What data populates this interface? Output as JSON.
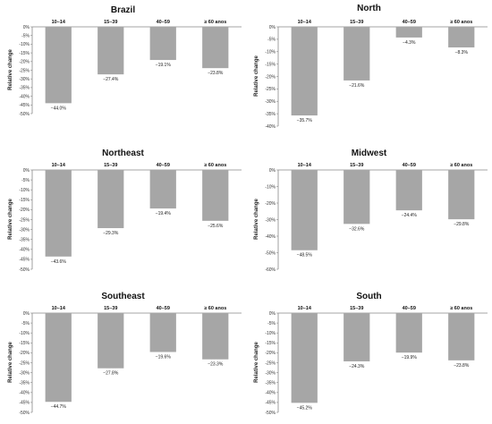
{
  "bar_color": "#a6a6a6",
  "axis_color": "#888888",
  "chart_data": [
    {
      "type": "bar",
      "title": "Brazil",
      "ylabel": "Relative change",
      "categories": [
        "10–14",
        "15–39",
        "40–59",
        "≥ 60 anos"
      ],
      "values": [
        -44.0,
        -27.4,
        -19.1,
        -23.8
      ],
      "data_labels": [
        "−44.0%",
        "−27.4%",
        "−19.1%",
        "−23.8%"
      ],
      "ylim": [
        -50,
        0
      ],
      "yticks": [
        0,
        -5,
        -10,
        -15,
        -20,
        -25,
        -30,
        -35,
        -40,
        -45,
        -50
      ],
      "ytick_labels": [
        "0%",
        "-5%",
        "-10%",
        "-15%",
        "-20%",
        "-25%",
        "-30%",
        "-35%",
        "-40%",
        "-45%",
        "-50%"
      ],
      "grid": false
    },
    {
      "type": "bar",
      "title": "North",
      "ylabel": "Relative change",
      "categories": [
        "10–14",
        "15–39",
        "40–59",
        "≥ 60 anos"
      ],
      "values": [
        -35.7,
        -21.6,
        -4.3,
        -8.3
      ],
      "data_labels": [
        "−35.7%",
        "−21.6%",
        "−4.3%",
        "−8.3%"
      ],
      "ylim": [
        -40,
        0
      ],
      "yticks": [
        0,
        -5,
        -10,
        -15,
        -20,
        -25,
        -30,
        -35,
        -40
      ],
      "ytick_labels": [
        "0%",
        "-5%",
        "-10%",
        "-15%",
        "-20%",
        "-25%",
        "-30%",
        "-35%",
        "-40%"
      ],
      "grid": false
    },
    {
      "type": "bar",
      "title": "Northeast",
      "ylabel": "Relative change",
      "categories": [
        "10–14",
        "15–39",
        "40–59",
        "≥ 60 anos"
      ],
      "values": [
        -43.6,
        -29.3,
        -19.4,
        -25.6
      ],
      "data_labels": [
        "−43.6%",
        "−29.3%",
        "−19.4%",
        "−25.6%"
      ],
      "ylim": [
        -50,
        0
      ],
      "yticks": [
        0,
        -5,
        -10,
        -15,
        -20,
        -25,
        -30,
        -35,
        -40,
        -45,
        -50
      ],
      "ytick_labels": [
        "0%",
        "-5%",
        "-10%",
        "-15%",
        "-20%",
        "-25%",
        "-30%",
        "-35%",
        "-40%",
        "-45%",
        "-50%"
      ],
      "grid": false
    },
    {
      "type": "bar",
      "title": "Midwest",
      "ylabel": "Relative change",
      "categories": [
        "10–14",
        "15–39",
        "40–59",
        "≥ 60 anos"
      ],
      "values": [
        -48.5,
        -32.6,
        -24.4,
        -29.8
      ],
      "data_labels": [
        "−48.5%",
        "−32.6%",
        "−24.4%",
        "−29.8%"
      ],
      "ylim": [
        -60,
        0
      ],
      "yticks": [
        0,
        -10,
        -20,
        -30,
        -40,
        -50,
        -60
      ],
      "ytick_labels": [
        "0%",
        "-10%",
        "-20%",
        "-30%",
        "-40%",
        "-50%",
        "-60%"
      ],
      "grid": false
    },
    {
      "type": "bar",
      "title": "Southeast",
      "ylabel": "Relative change",
      "categories": [
        "10–14",
        "15–39",
        "40–59",
        "≥ 60 anos"
      ],
      "values": [
        -44.7,
        -27.8,
        -19.6,
        -23.3
      ],
      "data_labels": [
        "−44.7%",
        "−27.8%",
        "−19.6%",
        "−23.3%"
      ],
      "ylim": [
        -50,
        0
      ],
      "yticks": [
        0,
        -5,
        -10,
        -15,
        -20,
        -25,
        -30,
        -35,
        -40,
        -45,
        -50
      ],
      "ytick_labels": [
        "0%",
        "-5%",
        "-10%",
        "-15%",
        "-20%",
        "-25%",
        "-30%",
        "-35%",
        "-40%",
        "-45%",
        "-50%"
      ],
      "grid": false
    },
    {
      "type": "bar",
      "title": "South",
      "ylabel": "Relative change",
      "categories": [
        "10–14",
        "15–39",
        "40–59",
        "≥ 60 anos"
      ],
      "values": [
        -45.2,
        -24.3,
        -19.9,
        -23.8
      ],
      "data_labels": [
        "−45.2%",
        "−24.3%",
        "−19.9%",
        "−23.8%"
      ],
      "ylim": [
        -50,
        0
      ],
      "yticks": [
        0,
        -5,
        -10,
        -15,
        -20,
        -25,
        -30,
        -35,
        -40,
        -45,
        -50
      ],
      "ytick_labels": [
        "0%",
        "-5%",
        "-10%",
        "-15%",
        "-20%",
        "-25%",
        "-30%",
        "-35%",
        "-40%",
        "-45%",
        "-50%"
      ],
      "grid": false
    }
  ]
}
